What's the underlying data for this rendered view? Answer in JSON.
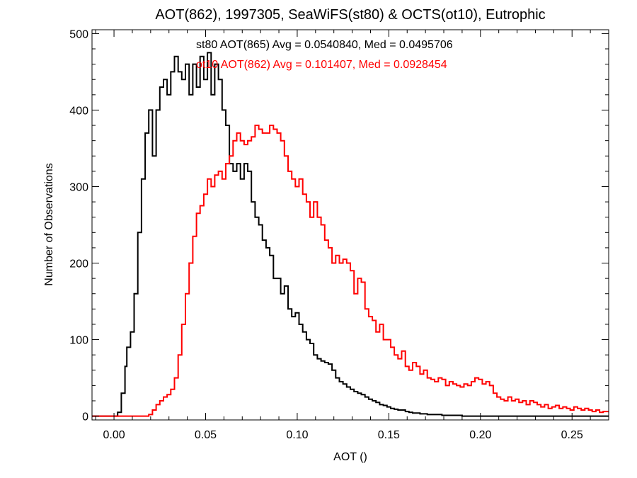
{
  "chart_data": {
    "type": "line",
    "step": true,
    "title": "AOT(862), 1997305, SeaWiFS(st80) & OCTS(ot10), Eutrophic",
    "xlabel": "AOT ()",
    "ylabel": "Number of Observations",
    "xlim": [
      -0.012,
      0.27
    ],
    "ylim": [
      -5,
      505
    ],
    "xticks": [
      0.0,
      0.05,
      0.1,
      0.15,
      0.2,
      0.25
    ],
    "xtick_labels": [
      "0.00",
      "0.05",
      "0.10",
      "0.15",
      "0.20",
      "0.25"
    ],
    "yticks": [
      0,
      100,
      200,
      300,
      400,
      500
    ],
    "ytick_labels": [
      "0",
      "100",
      "200",
      "300",
      "400",
      "500"
    ],
    "annotations": [
      {
        "text": "st80 AOT(865) Avg = 0.0540840, Med = 0.0495706",
        "color": "#000000"
      },
      {
        "text": "ot10 AOT(862) Avg = 0.101407, Med = 0.0928454",
        "color": "#ff0000"
      }
    ],
    "series": [
      {
        "color": "#000000",
        "points": [
          [
            -0.012,
            0
          ],
          [
            0.0,
            0
          ],
          [
            0.002,
            5
          ],
          [
            0.004,
            30
          ],
          [
            0.006,
            65
          ],
          [
            0.007,
            90
          ],
          [
            0.009,
            110
          ],
          [
            0.011,
            160
          ],
          [
            0.013,
            240
          ],
          [
            0.015,
            310
          ],
          [
            0.017,
            370
          ],
          [
            0.019,
            400
          ],
          [
            0.021,
            340
          ],
          [
            0.023,
            400
          ],
          [
            0.025,
            430
          ],
          [
            0.027,
            440
          ],
          [
            0.029,
            420
          ],
          [
            0.031,
            450
          ],
          [
            0.033,
            470
          ],
          [
            0.035,
            450
          ],
          [
            0.037,
            440
          ],
          [
            0.039,
            460
          ],
          [
            0.041,
            420
          ],
          [
            0.043,
            460
          ],
          [
            0.045,
            430
          ],
          [
            0.047,
            470
          ],
          [
            0.049,
            440
          ],
          [
            0.051,
            475
          ],
          [
            0.053,
            420
          ],
          [
            0.055,
            460
          ],
          [
            0.057,
            440
          ],
          [
            0.059,
            400
          ],
          [
            0.061,
            380
          ],
          [
            0.063,
            330
          ],
          [
            0.065,
            320
          ],
          [
            0.067,
            330
          ],
          [
            0.069,
            310
          ],
          [
            0.071,
            330
          ],
          [
            0.073,
            320
          ],
          [
            0.075,
            280
          ],
          [
            0.077,
            260
          ],
          [
            0.079,
            250
          ],
          [
            0.081,
            230
          ],
          [
            0.083,
            220
          ],
          [
            0.085,
            210
          ],
          [
            0.087,
            180
          ],
          [
            0.089,
            180
          ],
          [
            0.091,
            160
          ],
          [
            0.093,
            170
          ],
          [
            0.095,
            140
          ],
          [
            0.097,
            130
          ],
          [
            0.099,
            135
          ],
          [
            0.101,
            120
          ],
          [
            0.103,
            110
          ],
          [
            0.105,
            100
          ],
          [
            0.107,
            95
          ],
          [
            0.109,
            80
          ],
          [
            0.111,
            75
          ],
          [
            0.113,
            72
          ],
          [
            0.115,
            70
          ],
          [
            0.117,
            68
          ],
          [
            0.119,
            60
          ],
          [
            0.121,
            50
          ],
          [
            0.123,
            45
          ],
          [
            0.125,
            42
          ],
          [
            0.127,
            38
          ],
          [
            0.129,
            35
          ],
          [
            0.131,
            32
          ],
          [
            0.133,
            30
          ],
          [
            0.135,
            28
          ],
          [
            0.137,
            25
          ],
          [
            0.139,
            22
          ],
          [
            0.141,
            20
          ],
          [
            0.143,
            18
          ],
          [
            0.145,
            15
          ],
          [
            0.147,
            14
          ],
          [
            0.149,
            12
          ],
          [
            0.151,
            10
          ],
          [
            0.153,
            9
          ],
          [
            0.155,
            8
          ],
          [
            0.157,
            8
          ],
          [
            0.159,
            6
          ],
          [
            0.161,
            5
          ],
          [
            0.163,
            4
          ],
          [
            0.165,
            4
          ],
          [
            0.167,
            3
          ],
          [
            0.169,
            3
          ],
          [
            0.171,
            2
          ],
          [
            0.173,
            2
          ],
          [
            0.175,
            2
          ],
          [
            0.177,
            2
          ],
          [
            0.179,
            1
          ],
          [
            0.181,
            1
          ],
          [
            0.185,
            1
          ],
          [
            0.19,
            0
          ],
          [
            0.27,
            0
          ]
        ]
      },
      {
        "color": "#ff0000",
        "points": [
          [
            -0.012,
            0
          ],
          [
            0.017,
            0
          ],
          [
            0.019,
            2
          ],
          [
            0.021,
            8
          ],
          [
            0.023,
            15
          ],
          [
            0.025,
            20
          ],
          [
            0.027,
            25
          ],
          [
            0.029,
            28
          ],
          [
            0.031,
            35
          ],
          [
            0.033,
            50
          ],
          [
            0.035,
            80
          ],
          [
            0.037,
            120
          ],
          [
            0.039,
            160
          ],
          [
            0.041,
            200
          ],
          [
            0.043,
            235
          ],
          [
            0.045,
            265
          ],
          [
            0.047,
            275
          ],
          [
            0.049,
            290
          ],
          [
            0.051,
            310
          ],
          [
            0.053,
            300
          ],
          [
            0.055,
            315
          ],
          [
            0.057,
            320
          ],
          [
            0.059,
            310
          ],
          [
            0.061,
            330
          ],
          [
            0.063,
            340
          ],
          [
            0.065,
            360
          ],
          [
            0.067,
            370
          ],
          [
            0.069,
            360
          ],
          [
            0.071,
            355
          ],
          [
            0.073,
            360
          ],
          [
            0.075,
            365
          ],
          [
            0.077,
            380
          ],
          [
            0.079,
            375
          ],
          [
            0.081,
            370
          ],
          [
            0.083,
            370
          ],
          [
            0.085,
            380
          ],
          [
            0.087,
            375
          ],
          [
            0.089,
            370
          ],
          [
            0.091,
            360
          ],
          [
            0.093,
            340
          ],
          [
            0.095,
            320
          ],
          [
            0.097,
            310
          ],
          [
            0.099,
            300
          ],
          [
            0.101,
            310
          ],
          [
            0.103,
            290
          ],
          [
            0.105,
            280
          ],
          [
            0.107,
            260
          ],
          [
            0.109,
            280
          ],
          [
            0.111,
            260
          ],
          [
            0.113,
            250
          ],
          [
            0.115,
            230
          ],
          [
            0.117,
            220
          ],
          [
            0.119,
            200
          ],
          [
            0.121,
            210
          ],
          [
            0.123,
            200
          ],
          [
            0.125,
            205
          ],
          [
            0.127,
            200
          ],
          [
            0.129,
            190
          ],
          [
            0.131,
            160
          ],
          [
            0.133,
            180
          ],
          [
            0.135,
            175
          ],
          [
            0.137,
            140
          ],
          [
            0.139,
            130
          ],
          [
            0.141,
            125
          ],
          [
            0.143,
            110
          ],
          [
            0.145,
            120
          ],
          [
            0.147,
            100
          ],
          [
            0.149,
            100
          ],
          [
            0.151,
            90
          ],
          [
            0.153,
            80
          ],
          [
            0.155,
            75
          ],
          [
            0.157,
            85
          ],
          [
            0.159,
            65
          ],
          [
            0.161,
            60
          ],
          [
            0.163,
            70
          ],
          [
            0.165,
            65
          ],
          [
            0.167,
            55
          ],
          [
            0.169,
            60
          ],
          [
            0.171,
            50
          ],
          [
            0.173,
            48
          ],
          [
            0.175,
            45
          ],
          [
            0.177,
            50
          ],
          [
            0.179,
            48
          ],
          [
            0.181,
            40
          ],
          [
            0.183,
            45
          ],
          [
            0.185,
            42
          ],
          [
            0.187,
            40
          ],
          [
            0.189,
            38
          ],
          [
            0.191,
            42
          ],
          [
            0.193,
            40
          ],
          [
            0.195,
            45
          ],
          [
            0.197,
            50
          ],
          [
            0.199,
            48
          ],
          [
            0.201,
            42
          ],
          [
            0.203,
            45
          ],
          [
            0.205,
            40
          ],
          [
            0.207,
            30
          ],
          [
            0.209,
            25
          ],
          [
            0.211,
            22
          ],
          [
            0.213,
            20
          ],
          [
            0.215,
            25
          ],
          [
            0.217,
            20
          ],
          [
            0.219,
            22
          ],
          [
            0.221,
            18
          ],
          [
            0.223,
            20
          ],
          [
            0.225,
            15
          ],
          [
            0.227,
            20
          ],
          [
            0.229,
            18
          ],
          [
            0.231,
            15
          ],
          [
            0.233,
            12
          ],
          [
            0.235,
            15
          ],
          [
            0.237,
            10
          ],
          [
            0.239,
            12
          ],
          [
            0.241,
            14
          ],
          [
            0.243,
            10
          ],
          [
            0.245,
            12
          ],
          [
            0.247,
            10
          ],
          [
            0.249,
            8
          ],
          [
            0.251,
            12
          ],
          [
            0.253,
            10
          ],
          [
            0.255,
            8
          ],
          [
            0.257,
            10
          ],
          [
            0.259,
            8
          ],
          [
            0.261,
            6
          ],
          [
            0.263,
            8
          ],
          [
            0.265,
            5
          ],
          [
            0.267,
            6
          ],
          [
            0.27,
            5
          ]
        ]
      }
    ]
  }
}
